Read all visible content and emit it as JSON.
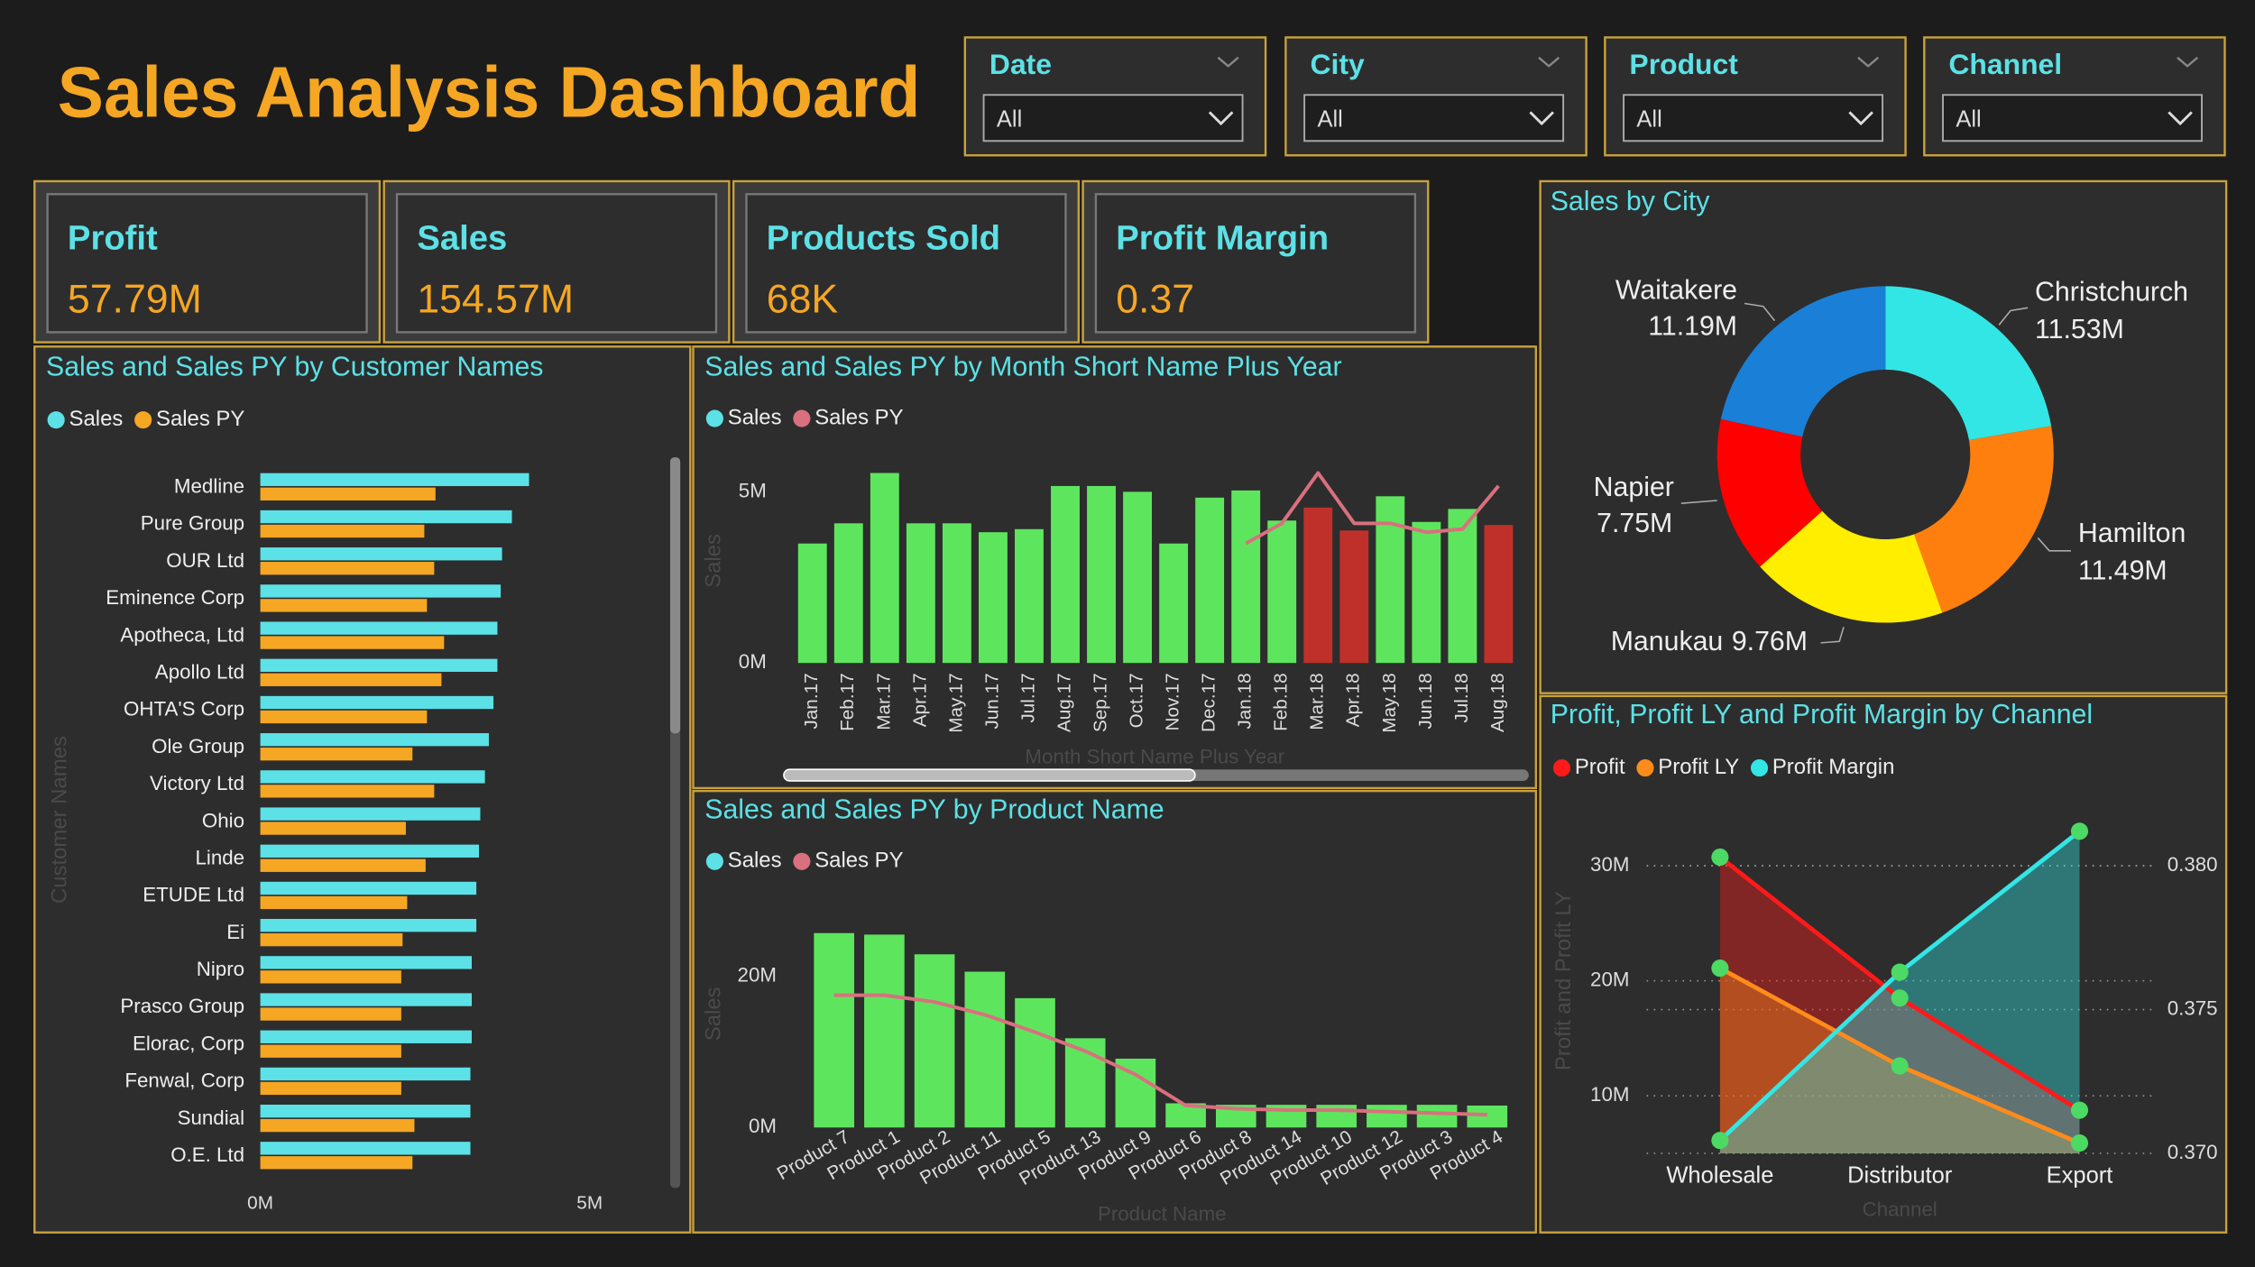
{
  "title": "Sales Analysis Dashboard",
  "slicers": [
    {
      "label": "Date",
      "value": "All"
    },
    {
      "label": "City",
      "value": "All"
    },
    {
      "label": "Product",
      "value": "All"
    },
    {
      "label": "Channel",
      "value": "All"
    }
  ],
  "kpis": [
    {
      "label": "Profit",
      "value": "57.79M"
    },
    {
      "label": "Sales",
      "value": "154.57M"
    },
    {
      "label": "Products Sold",
      "value": "68K"
    },
    {
      "label": "Profit Margin",
      "value": "0.37"
    }
  ],
  "chart_data": [
    {
      "type": "bar",
      "orientation": "horizontal",
      "title": "Sales and Sales PY by Customer Names",
      "y_label": "Customer Names",
      "categories": [
        "Medline",
        "Pure Group",
        "OUR Ltd",
        "Eminence Corp",
        "Apotheca, Ltd",
        "Apollo Ltd",
        "OHTA'S Corp",
        "Ole Group",
        "Victory Ltd",
        "Ohio",
        "Linde",
        "ETUDE Ltd",
        "Ei",
        "Nipro",
        "Prasco Group",
        "Elorac, Corp",
        "Fenwal, Corp",
        "Sundial",
        "O.E. Ltd"
      ],
      "series": [
        {
          "name": "Sales",
          "color": "#5ce1e6",
          "values": [
            4.08,
            3.82,
            3.67,
            3.65,
            3.6,
            3.6,
            3.54,
            3.47,
            3.41,
            3.34,
            3.32,
            3.28,
            3.28,
            3.21,
            3.21,
            3.21,
            3.19,
            3.19,
            3.19
          ]
        },
        {
          "name": "Sales PY",
          "color": "#f5a623",
          "values": [
            2.66,
            2.49,
            2.64,
            2.53,
            2.79,
            2.75,
            2.53,
            2.31,
            2.64,
            2.21,
            2.51,
            2.23,
            2.16,
            2.14,
            2.14,
            2.14,
            2.14,
            2.34,
            2.31
          ]
        }
      ],
      "xlim": [
        0,
        5
      ],
      "xticks": [
        {
          "value": 0,
          "label": "0M"
        },
        {
          "value": 5,
          "label": "5M"
        }
      ]
    },
    {
      "type": "combo",
      "title": "Sales and Sales PY by Month Short Name Plus Year",
      "x_label": "Month Short Name Plus Year",
      "y_label": "Sales",
      "categories": [
        "Jan.17",
        "Feb.17",
        "Mar.17",
        "Apr.17",
        "May.17",
        "Jun.17",
        "Jul.17",
        "Aug.17",
        "Sep.17",
        "Oct.17",
        "Nov.17",
        "Dec.17",
        "Jan.18",
        "Feb.18",
        "Mar.18",
        "Apr.18",
        "May.18",
        "Jun.18",
        "Jul.18",
        "Aug.18"
      ],
      "series": [
        {
          "name": "Sales",
          "mark": "bar",
          "color": "#5ce1e6",
          "colors": [
            "#5ee55e",
            "#5ee55e",
            "#5ee55e",
            "#5ee55e",
            "#5ee55e",
            "#5ee55e",
            "#5ee55e",
            "#5ee55e",
            "#5ee55e",
            "#5ee55e",
            "#5ee55e",
            "#5ee55e",
            "#5ee55e",
            "#5ee55e",
            "#c0302a",
            "#c0302a",
            "#5ee55e",
            "#5ee55e",
            "#5ee55e",
            "#c0302a"
          ],
          "values": [
            3.49,
            4.08,
            5.55,
            4.08,
            4.08,
            3.82,
            3.91,
            5.17,
            5.17,
            5.0,
            3.49,
            4.83,
            5.04,
            4.16,
            4.54,
            3.87,
            4.87,
            4.12,
            4.5,
            4.03
          ]
        },
        {
          "name": "Sales PY",
          "mark": "line",
          "color": "#d9707e",
          "values": [
            null,
            null,
            null,
            null,
            null,
            null,
            null,
            null,
            null,
            null,
            null,
            null,
            3.49,
            4.08,
            5.55,
            4.08,
            4.08,
            3.82,
            3.91,
            5.17
          ]
        }
      ],
      "ylim": [
        0,
        5.6
      ],
      "yticks": [
        {
          "value": 0,
          "label": "0M"
        },
        {
          "value": 5,
          "label": "5M"
        }
      ]
    },
    {
      "type": "combo",
      "title": "Sales and Sales PY by Product Name",
      "x_label": "Product Name",
      "y_label": "Sales",
      "categories": [
        "Product 7",
        "Product 1",
        "Product 2",
        "Product 11",
        "Product 5",
        "Product 13",
        "Product 9",
        "Product 6",
        "Product 8",
        "Product 14",
        "Product 10",
        "Product 12",
        "Product 3",
        "Product 4"
      ],
      "series": [
        {
          "name": "Sales",
          "mark": "bar",
          "color": "#5ce1e6",
          "bar_color": "#5ee55e",
          "values": [
            25.7,
            25.5,
            22.9,
            20.6,
            17.1,
            11.8,
            9.1,
            3.2,
            3.0,
            3.0,
            3.0,
            3.0,
            3.0,
            2.9
          ]
        },
        {
          "name": "Sales PY",
          "mark": "line",
          "color": "#d9707e",
          "values": [
            17.5,
            17.5,
            16.6,
            14.9,
            12.6,
            10.1,
            7.0,
            2.9,
            2.5,
            2.3,
            2.3,
            2.1,
            1.9,
            1.7
          ]
        }
      ],
      "ylim": [
        0,
        27
      ],
      "yticks": [
        {
          "value": 0,
          "label": "0M"
        },
        {
          "value": 20,
          "label": "20M"
        }
      ]
    },
    {
      "type": "donut",
      "title": "Sales by City",
      "categories": [
        "Christchurch",
        "Hamilton",
        "Manukau",
        "Napier",
        "Waitakere"
      ],
      "values": [
        11.53,
        11.49,
        9.76,
        7.75,
        11.19
      ],
      "value_labels": [
        "11.53M",
        "11.49M",
        "9.76M",
        "7.75M",
        "11.19M"
      ],
      "colors": [
        "#33e6e6",
        "#ff7f0e",
        "#ffee00",
        "#ff0000",
        "#1a7fd6"
      ]
    },
    {
      "type": "area",
      "title": "Profit, Profit LY and Profit Margin by Channel",
      "x_label": "Channel",
      "y_label": "Profit and Profit LY",
      "categories": [
        "Wholesale",
        "Distributor",
        "Export"
      ],
      "marker_color": "#4cd964",
      "series": [
        {
          "name": "Profit",
          "color": "#ff1a1a",
          "values": [
            30.75,
            18.5,
            8.75
          ]
        },
        {
          "name": "Profit LY",
          "color": "#ff8c1a",
          "values": [
            21.1,
            12.6,
            5.9
          ]
        },
        {
          "name": "Profit Margin",
          "color": "#33e6e6",
          "axis": "y2",
          "values": [
            0.37045,
            0.3763,
            0.3812
          ]
        }
      ],
      "ylim": [
        5,
        33
      ],
      "yticks": [
        {
          "value": 10,
          "label": "10M"
        },
        {
          "value": 20,
          "label": "20M"
        },
        {
          "value": 30,
          "label": "30M"
        }
      ],
      "y2lim": [
        0.37,
        0.3812
      ],
      "y2ticks": [
        {
          "value": 0.37,
          "label": "0.370"
        },
        {
          "value": 0.375,
          "label": "0.375"
        },
        {
          "value": 0.38,
          "label": "0.380"
        }
      ],
      "grid": true
    }
  ]
}
